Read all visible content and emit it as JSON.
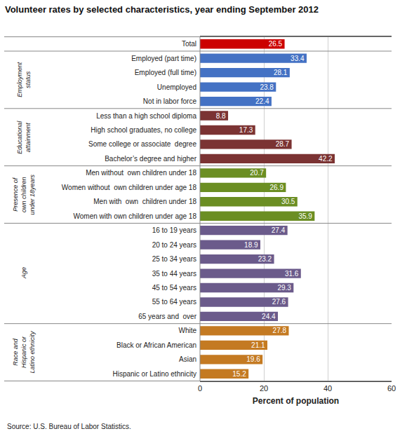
{
  "chart_data": {
    "type": "bar",
    "orientation": "horizontal",
    "title": "Volunteer rates by selected characteristics, year ending September 2012",
    "xlabel": "Percent of population",
    "source": "Source: U.S. Bureau of Labor Statistics.",
    "categories": [
      "Total",
      "Employed (part time)",
      "Employed (full time)",
      "Unemployed",
      "Not in labor force",
      "Less than a high school diploma",
      "High school graduates, no college",
      "Some college or associate  degree",
      "Bachelor’s degree and higher",
      "Men without  own children under 18",
      "Women without  own children under age 18",
      "Men with  own  children under 18",
      "Women with own children under age 18",
      "16 to 19 years",
      "20 to 24 years",
      "25 to 34 years",
      "35 to 44 years",
      "45 to 54 years",
      "55 to 64 years",
      "65 years and  over",
      "White",
      "Black or African American",
      "Asian",
      "Hispanic or Latino ethnicity"
    ],
    "values": [
      26.5,
      33.4,
      28.1,
      23.8,
      22.4,
      8.8,
      17.3,
      28.7,
      42.2,
      20.7,
      26.9,
      30.5,
      35.9,
      27.4,
      18.9,
      23.2,
      31.6,
      29.3,
      27.6,
      24.4,
      27.8,
      21.1,
      19.6,
      15.2
    ],
    "colors": [
      "#cc0000",
      "#4472c4",
      "#4472c4",
      "#4472c4",
      "#4472c4",
      "#7b3333",
      "#7b3333",
      "#7b3333",
      "#7b3333",
      "#6b8e23",
      "#6b8e23",
      "#6b8e23",
      "#6b8e23",
      "#6b5b8b",
      "#6b5b8b",
      "#6b5b8b",
      "#6b5b8b",
      "#6b5b8b",
      "#6b5b8b",
      "#6b5b8b",
      "#c47a22",
      "#c47a22",
      "#c47a22",
      "#c47a22"
    ],
    "annotations": [
      {
        "text": "Employment\nstatus",
        "from": "Employed (part time)",
        "to": "Not in labor force"
      },
      {
        "text": "Educational\nattainment",
        "from": "Less than a high school diploma",
        "to": "Bachelor’s degree and higher"
      },
      {
        "text": "Presence of\nown children\nunder 18years",
        "from": "Men without  own children under 18",
        "to": "Women with own children under age 18"
      },
      {
        "text": "Age",
        "from": "16 to 19 years",
        "to": "65 years and  over"
      },
      {
        "text": "Race and\nHispanic or\nLatino ethnicity",
        "from": "White",
        "to": "Hispanic or Latino ethnicity"
      }
    ],
    "xlim": [
      0,
      60
    ],
    "xticks": [
      0,
      20,
      40,
      60
    ],
    "data_labels": true,
    "grid": true
  }
}
